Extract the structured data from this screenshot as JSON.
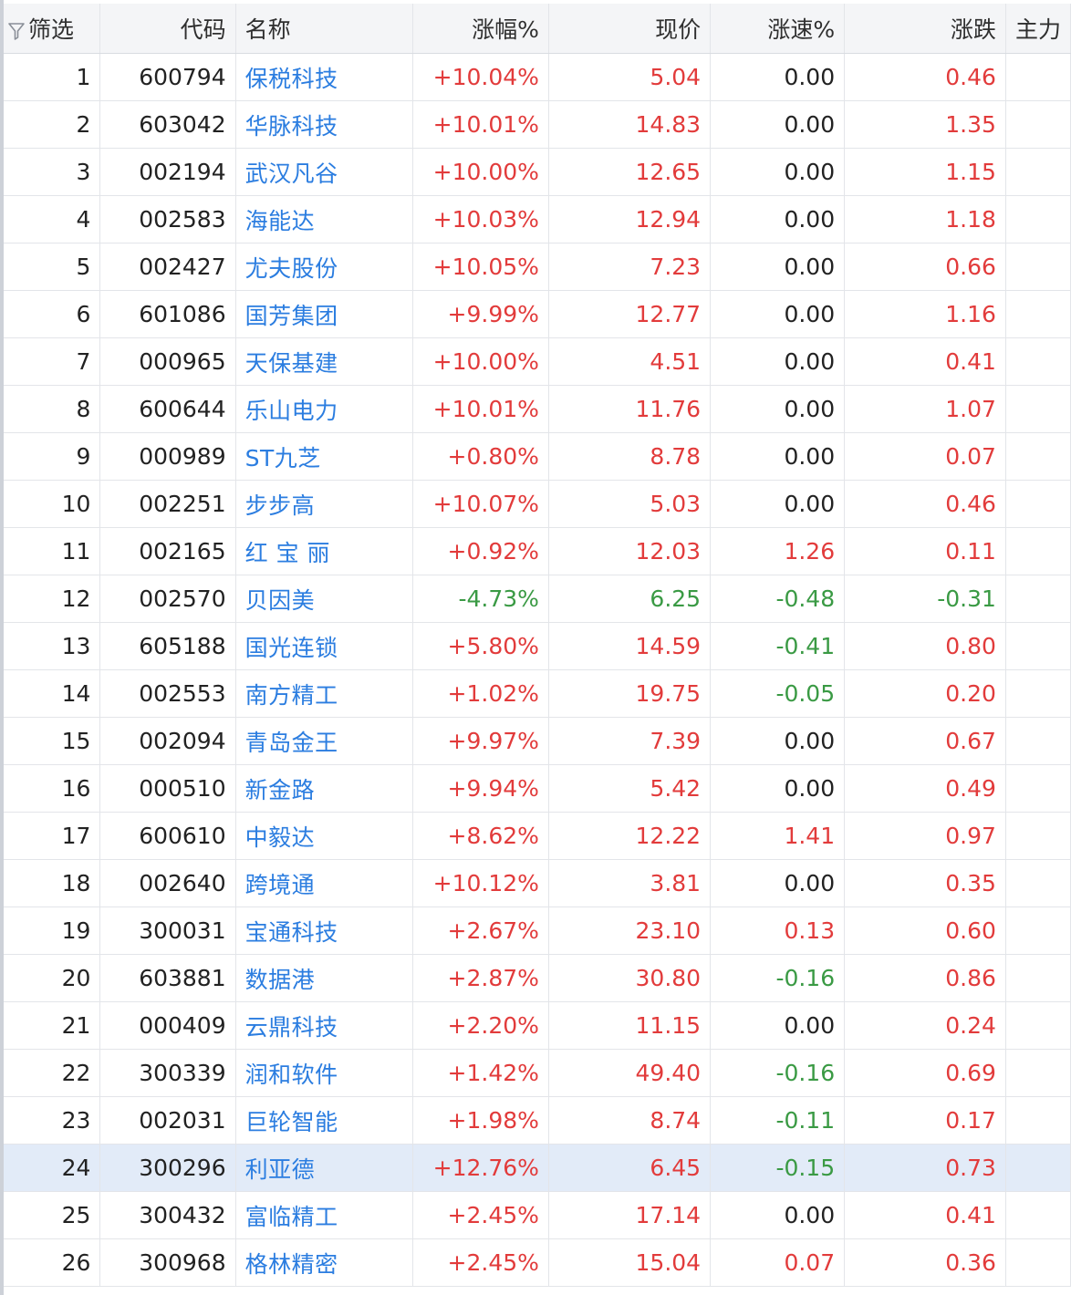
{
  "columns": {
    "filter": "筛选",
    "code": "代码",
    "name": "名称",
    "change_pct": "涨幅%",
    "price": "现价",
    "speed_pct": "涨速%",
    "change": "涨跌",
    "extra": "主力"
  },
  "colors": {
    "up": "#e23b3b",
    "down": "#3a9a44",
    "name": "#2b7de0",
    "selected_row": "#e2ebf8"
  },
  "selected_row_index": 24,
  "rows": [
    {
      "idx": "1",
      "code": "600794",
      "name": "保税科技",
      "pct": "+10.04%",
      "price": "5.04",
      "speed": "0.00",
      "chg": "0.46"
    },
    {
      "idx": "2",
      "code": "603042",
      "name": "华脉科技",
      "pct": "+10.01%",
      "price": "14.83",
      "speed": "0.00",
      "chg": "1.35"
    },
    {
      "idx": "3",
      "code": "002194",
      "name": "武汉凡谷",
      "pct": "+10.00%",
      "price": "12.65",
      "speed": "0.00",
      "chg": "1.15"
    },
    {
      "idx": "4",
      "code": "002583",
      "name": "海能达",
      "pct": "+10.03%",
      "price": "12.94",
      "speed": "0.00",
      "chg": "1.18"
    },
    {
      "idx": "5",
      "code": "002427",
      "name": "尤夫股份",
      "pct": "+10.05%",
      "price": "7.23",
      "speed": "0.00",
      "chg": "0.66"
    },
    {
      "idx": "6",
      "code": "601086",
      "name": "国芳集团",
      "pct": "+9.99%",
      "price": "12.77",
      "speed": "0.00",
      "chg": "1.16"
    },
    {
      "idx": "7",
      "code": "000965",
      "name": "天保基建",
      "pct": "+10.00%",
      "price": "4.51",
      "speed": "0.00",
      "chg": "0.41"
    },
    {
      "idx": "8",
      "code": "600644",
      "name": "乐山电力",
      "pct": "+10.01%",
      "price": "11.76",
      "speed": "0.00",
      "chg": "1.07"
    },
    {
      "idx": "9",
      "code": "000989",
      "name": "ST九芝",
      "pct": "+0.80%",
      "price": "8.78",
      "speed": "0.00",
      "chg": "0.07"
    },
    {
      "idx": "10",
      "code": "002251",
      "name": "步步高",
      "pct": "+10.07%",
      "price": "5.03",
      "speed": "0.00",
      "chg": "0.46"
    },
    {
      "idx": "11",
      "code": "002165",
      "name": "红 宝 丽",
      "pct": "+0.92%",
      "price": "12.03",
      "speed": "1.26",
      "chg": "0.11"
    },
    {
      "idx": "12",
      "code": "002570",
      "name": "贝因美",
      "pct": "-4.73%",
      "price": "6.25",
      "speed": "-0.48",
      "chg": "-0.31"
    },
    {
      "idx": "13",
      "code": "605188",
      "name": "国光连锁",
      "pct": "+5.80%",
      "price": "14.59",
      "speed": "-0.41",
      "chg": "0.80"
    },
    {
      "idx": "14",
      "code": "002553",
      "name": "南方精工",
      "pct": "+1.02%",
      "price": "19.75",
      "speed": "-0.05",
      "chg": "0.20"
    },
    {
      "idx": "15",
      "code": "002094",
      "name": "青岛金王",
      "pct": "+9.97%",
      "price": "7.39",
      "speed": "0.00",
      "chg": "0.67"
    },
    {
      "idx": "16",
      "code": "000510",
      "name": "新金路",
      "pct": "+9.94%",
      "price": "5.42",
      "speed": "0.00",
      "chg": "0.49"
    },
    {
      "idx": "17",
      "code": "600610",
      "name": "中毅达",
      "pct": "+8.62%",
      "price": "12.22",
      "speed": "1.41",
      "chg": "0.97"
    },
    {
      "idx": "18",
      "code": "002640",
      "name": "跨境通",
      "pct": "+10.12%",
      "price": "3.81",
      "speed": "0.00",
      "chg": "0.35"
    },
    {
      "idx": "19",
      "code": "300031",
      "name": "宝通科技",
      "pct": "+2.67%",
      "price": "23.10",
      "speed": "0.13",
      "chg": "0.60"
    },
    {
      "idx": "20",
      "code": "603881",
      "name": "数据港",
      "pct": "+2.87%",
      "price": "30.80",
      "speed": "-0.16",
      "chg": "0.86"
    },
    {
      "idx": "21",
      "code": "000409",
      "name": "云鼎科技",
      "pct": "+2.20%",
      "price": "11.15",
      "speed": "0.00",
      "chg": "0.24"
    },
    {
      "idx": "22",
      "code": "300339",
      "name": "润和软件",
      "pct": "+1.42%",
      "price": "49.40",
      "speed": "-0.16",
      "chg": "0.69"
    },
    {
      "idx": "23",
      "code": "002031",
      "name": "巨轮智能",
      "pct": "+1.98%",
      "price": "8.74",
      "speed": "-0.11",
      "chg": "0.17"
    },
    {
      "idx": "24",
      "code": "300296",
      "name": "利亚德",
      "pct": "+12.76%",
      "price": "6.45",
      "speed": "-0.15",
      "chg": "0.73"
    },
    {
      "idx": "25",
      "code": "300432",
      "name": "富临精工",
      "pct": "+2.45%",
      "price": "17.14",
      "speed": "0.00",
      "chg": "0.41"
    },
    {
      "idx": "26",
      "code": "300968",
      "name": "格林精密",
      "pct": "+2.45%",
      "price": "15.04",
      "speed": "0.07",
      "chg": "0.36"
    }
  ]
}
